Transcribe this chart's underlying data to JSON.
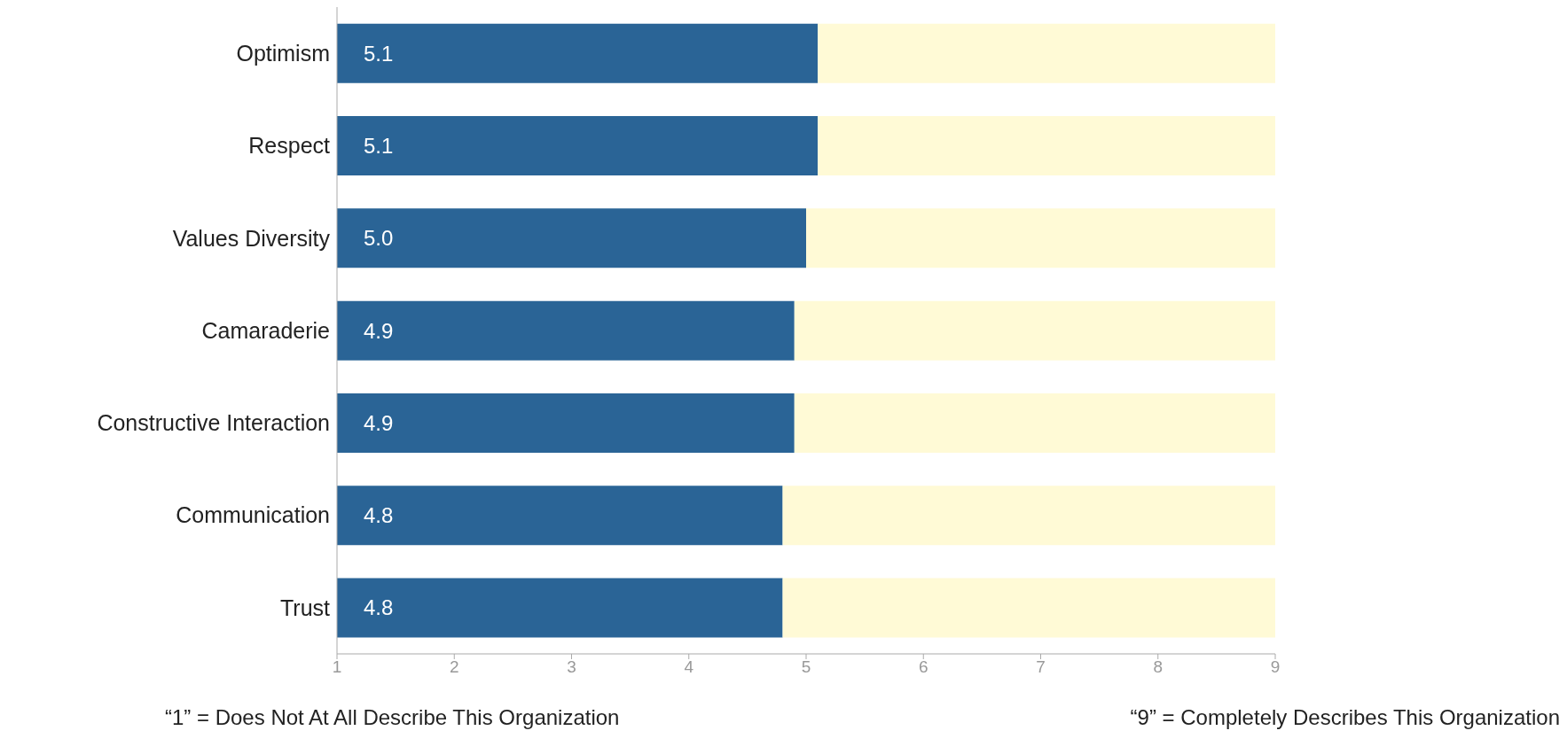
{
  "chart_data": {
    "type": "bar",
    "orientation": "horizontal",
    "stacked": true,
    "categories": [
      "Optimism",
      "Respect",
      "Values Diversity",
      "Camaraderie",
      "Constructive Interaction",
      "Communication",
      "Trust"
    ],
    "series": [
      {
        "color": "#2a6496",
        "values": [
          5.1,
          5.1,
          5.0,
          4.9,
          4.9,
          4.8,
          4.8
        ],
        "value_labels": [
          "5.1",
          "5.1",
          "5.0",
          "4.9",
          "4.9",
          "4.8",
          "4.8"
        ]
      },
      {
        "color": "#fffad6",
        "values": [
          3.9,
          3.9,
          4.0,
          4.1,
          4.1,
          4.2,
          4.2
        ]
      }
    ],
    "xlim": [
      1,
      9
    ],
    "xticks": [
      1,
      2,
      3,
      4,
      5,
      6,
      7,
      8,
      9
    ],
    "grid": false,
    "annotations": [
      "“1” = Does Not At All Describe This Organization",
      "“9” = Completely Describes This Organization"
    ]
  }
}
